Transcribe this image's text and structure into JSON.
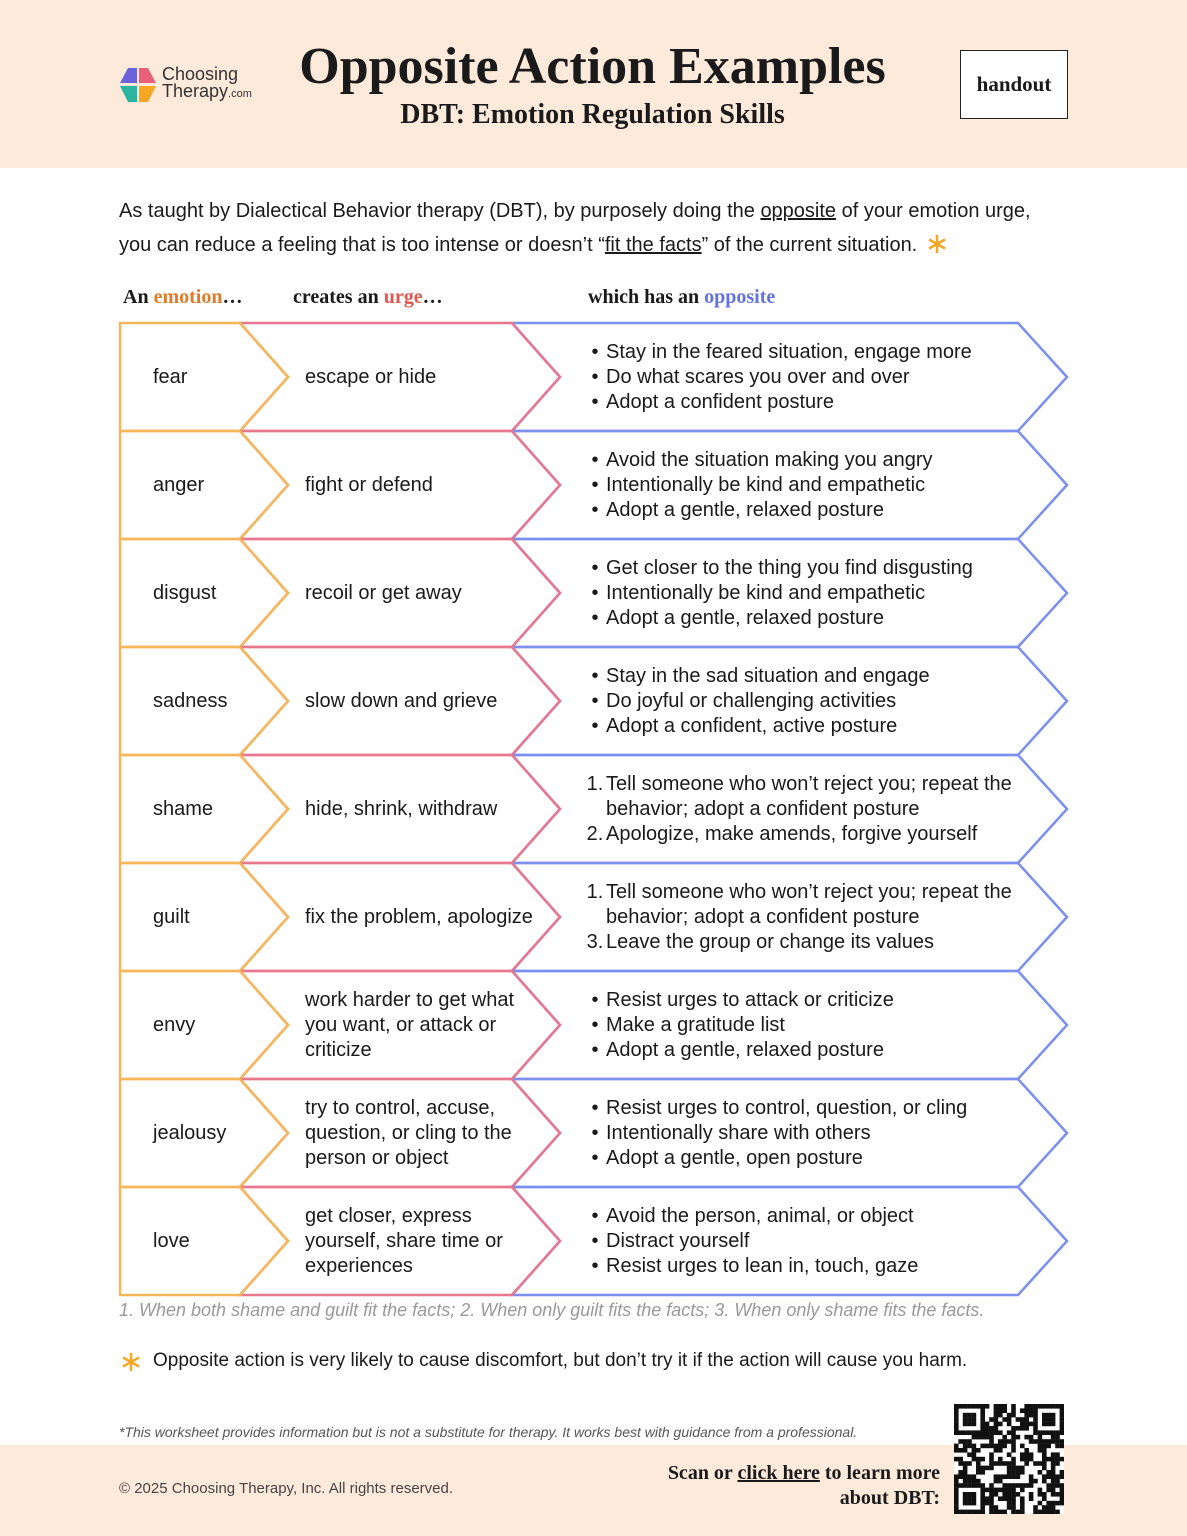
{
  "header": {
    "logo_line1": "Choosing",
    "logo_line2": "Therapy",
    "logo_suffix": ".com",
    "title": "Opposite Action Examples",
    "subtitle": "DBT: Emotion Regulation Skills",
    "badge": "handout"
  },
  "intro": {
    "part1": "As taught by Dialectical Behavior therapy (DBT), by purposely doing the ",
    "link1": "opposite",
    "part2": " of your emotion urge, you can reduce a feeling that is too intense or doesn’t “",
    "link2": "fit the facts",
    "part3": "” of the current situation."
  },
  "columns": [
    {
      "prefix": "An ",
      "highlight": "emotion",
      "suffix": "…"
    },
    {
      "prefix": "creates an ",
      "highlight": "urge",
      "suffix": "…"
    },
    {
      "prefix": "which has an ",
      "highlight": "opposite"
    }
  ],
  "rows": [
    {
      "emotion": "fear",
      "urge": "escape or hide",
      "opposites": [
        {
          "marker": "•",
          "text": "Stay in the feared situation, engage more"
        },
        {
          "marker": "•",
          "text": "Do what scares you over and over"
        },
        {
          "marker": "•",
          "text": "Adopt a confident posture"
        }
      ]
    },
    {
      "emotion": "anger",
      "urge": "fight or defend",
      "opposites": [
        {
          "marker": "•",
          "text": "Avoid the situation making you angry"
        },
        {
          "marker": "•",
          "text": "Intentionally be kind and empathetic"
        },
        {
          "marker": "•",
          "text": "Adopt a gentle, relaxed posture"
        }
      ]
    },
    {
      "emotion": "disgust",
      "urge": "recoil or get away",
      "opposites": [
        {
          "marker": "•",
          "text": "Get closer to the thing you find disgusting"
        },
        {
          "marker": "•",
          "text": "Intentionally be kind and empathetic"
        },
        {
          "marker": "•",
          "text": "Adopt a gentle, relaxed posture"
        }
      ]
    },
    {
      "emotion": "sadness",
      "urge": "slow down and grieve",
      "opposites": [
        {
          "marker": "•",
          "text": "Stay in the sad situation and engage"
        },
        {
          "marker": "•",
          "text": "Do joyful or challenging activities"
        },
        {
          "marker": "•",
          "text": "Adopt a confident, active posture"
        }
      ]
    },
    {
      "emotion": "shame",
      "urge": "hide, shrink, withdraw",
      "opposites": [
        {
          "marker": "1.",
          "text": "Tell someone who won’t reject you; repeat the behavior; adopt a confident posture"
        },
        {
          "marker": "2.",
          "text": "Apologize, make amends, forgive yourself"
        }
      ]
    },
    {
      "emotion": "guilt",
      "urge": "fix the problem, apologize",
      "opposites": [
        {
          "marker": "1.",
          "text": "Tell someone who won’t reject you; repeat the behavior; adopt a confident posture"
        },
        {
          "marker": "3.",
          "text": "Leave the group or change its values"
        }
      ]
    },
    {
      "emotion": "envy",
      "urge": "work harder to get what you want, or attack or criticize",
      "opposites": [
        {
          "marker": "•",
          "text": "Resist urges to attack or criticize"
        },
        {
          "marker": "•",
          "text": "Make a gratitude list"
        },
        {
          "marker": "•",
          "text": "Adopt a gentle, relaxed posture"
        }
      ]
    },
    {
      "emotion": "jealousy",
      "urge": "try to control, accuse, question, or cling to the person or object",
      "opposites": [
        {
          "marker": "•",
          "text": "Resist urges to control, question, or cling"
        },
        {
          "marker": "•",
          "text": "Intentionally share with others"
        },
        {
          "marker": "•",
          "text": "Adopt a gentle, open posture"
        }
      ]
    },
    {
      "emotion": "love",
      "urge": "get closer, express yourself, share time or experiences",
      "opposites": [
        {
          "marker": "•",
          "text": "Avoid the person, animal, or object"
        },
        {
          "marker": "•",
          "text": "Distract yourself"
        },
        {
          "marker": "•",
          "text": "Resist urges to lean in, touch, gaze"
        }
      ]
    }
  ],
  "footnote": "1. When both shame and guilt fit the facts; 2. When only guilt fits the facts; 3. When only shame fits the facts.",
  "note": "Opposite action is very likely to cause discomfort, but don’t try it if the action will cause you harm.",
  "disclaimer": "*This worksheet provides information but is not a substitute for therapy. It works best with guidance from a professional.",
  "footer": {
    "copyright": "© 2025 Choosing Therapy, Inc. All rights reserved.",
    "cta_part1": "Scan or ",
    "cta_link": "click here",
    "cta_part2": " to learn more about DBT:"
  }
}
